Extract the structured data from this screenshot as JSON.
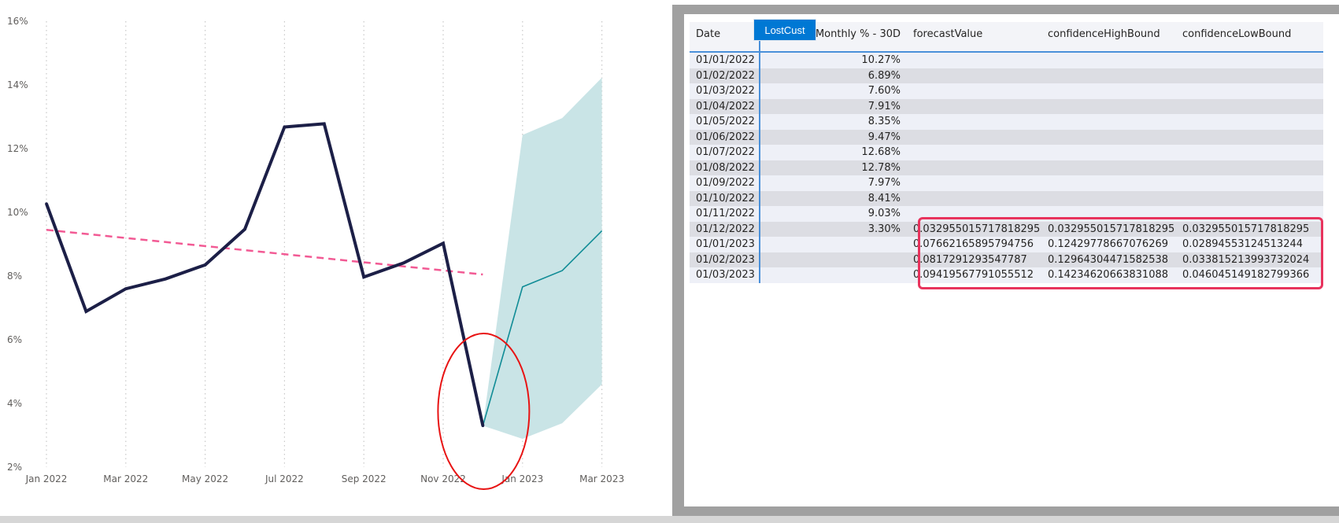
{
  "chart_data": {
    "type": "line",
    "x": [
      "Jan 2022",
      "Feb 2022",
      "Mar 2022",
      "Apr 2022",
      "May 2022",
      "Jun 2022",
      "Jul 2022",
      "Aug 2022",
      "Sep 2022",
      "Oct 2022",
      "Nov 2022",
      "Dec 2022",
      "Jan 2023",
      "Feb 2023",
      "Mar 2023"
    ],
    "x_tick_labels": [
      "Jan 2022",
      "Mar 2022",
      "May 2022",
      "Jul 2022",
      "Sep 2022",
      "Nov 2022",
      "Jan 2023",
      "Mar 2023"
    ],
    "y_tick_labels": [
      "2%",
      "4%",
      "6%",
      "8%",
      "10%",
      "12%",
      "14%",
      "16%"
    ],
    "ylim": [
      2,
      16
    ],
    "y_unit": "%",
    "grid": "vertical dotted",
    "series": [
      {
        "style": "actual",
        "color": "#1c1f47",
        "values": [
          10.27,
          6.89,
          7.6,
          7.91,
          8.35,
          9.47,
          12.68,
          12.78,
          7.97,
          8.41,
          9.03,
          3.3,
          null,
          null,
          null
        ]
      },
      {
        "style": "trend-dashed",
        "color": "#f25a94",
        "values": [
          9.45,
          null,
          null,
          null,
          null,
          null,
          null,
          null,
          null,
          null,
          null,
          8.05,
          null,
          null,
          null
        ]
      },
      {
        "style": "forecast",
        "color": "#108c96",
        "values": [
          null,
          null,
          null,
          null,
          null,
          null,
          null,
          null,
          null,
          null,
          null,
          3.3,
          7.66,
          8.17,
          9.42
        ]
      },
      {
        "style": "confidence-band",
        "color": "#c9e4e6",
        "high": [
          null,
          null,
          null,
          null,
          null,
          null,
          null,
          null,
          null,
          null,
          null,
          3.3,
          12.43,
          12.96,
          14.23
        ],
        "low": [
          null,
          null,
          null,
          null,
          null,
          null,
          null,
          null,
          null,
          null,
          null,
          3.3,
          2.89,
          3.38,
          4.6
        ]
      }
    ],
    "annotation": {
      "shape": "ellipse",
      "color": "#e81313",
      "around": "Dec 2022"
    }
  },
  "table": {
    "headers": {
      "date": "Date",
      "monthly": "Monthly % - 30D",
      "forecast": "forecastValue",
      "high": "confidenceHighBound",
      "low": "confidenceLowBound"
    },
    "tooltip": "LostCust",
    "rows": [
      {
        "date": "01/01/2022",
        "monthly": "10.27%",
        "forecast": "",
        "high": "",
        "low": ""
      },
      {
        "date": "01/02/2022",
        "monthly": "6.89%",
        "forecast": "",
        "high": "",
        "low": ""
      },
      {
        "date": "01/03/2022",
        "monthly": "7.60%",
        "forecast": "",
        "high": "",
        "low": ""
      },
      {
        "date": "01/04/2022",
        "monthly": "7.91%",
        "forecast": "",
        "high": "",
        "low": ""
      },
      {
        "date": "01/05/2022",
        "monthly": "8.35%",
        "forecast": "",
        "high": "",
        "low": ""
      },
      {
        "date": "01/06/2022",
        "monthly": "9.47%",
        "forecast": "",
        "high": "",
        "low": ""
      },
      {
        "date": "01/07/2022",
        "monthly": "12.68%",
        "forecast": "",
        "high": "",
        "low": ""
      },
      {
        "date": "01/08/2022",
        "monthly": "12.78%",
        "forecast": "",
        "high": "",
        "low": ""
      },
      {
        "date": "01/09/2022",
        "monthly": "7.97%",
        "forecast": "",
        "high": "",
        "low": ""
      },
      {
        "date": "01/10/2022",
        "monthly": "8.41%",
        "forecast": "",
        "high": "",
        "low": ""
      },
      {
        "date": "01/11/2022",
        "monthly": "9.03%",
        "forecast": "",
        "high": "",
        "low": ""
      },
      {
        "date": "01/12/2022",
        "monthly": "3.30%",
        "forecast": "0.032955015717818295",
        "high": "0.032955015717818295",
        "low": "0.032955015717818295"
      },
      {
        "date": "01/01/2023",
        "monthly": "",
        "forecast": "0.07662165895794756",
        "high": "0.12429778667076269",
        "low": "0.02894553124513244"
      },
      {
        "date": "01/02/2023",
        "monthly": "",
        "forecast": "0.0817291293547787",
        "high": "0.12964304471582538",
        "low": "0.033815213993732024"
      },
      {
        "date": "01/03/2023",
        "monthly": "",
        "forecast": "0.09419567791055512",
        "high": "0.14234620663831088",
        "low": "0.046045149182799366"
      }
    ]
  }
}
